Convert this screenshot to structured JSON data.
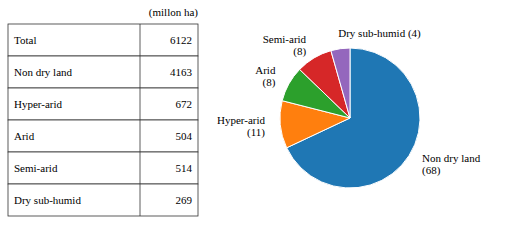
{
  "chart_data": [
    {
      "type": "table",
      "subtitle": "(millon ha)",
      "categories": [
        "Total",
        "Non dry land",
        "Hyper-arid",
        "Arid",
        "Semi-arid",
        "Dry sub-humid"
      ],
      "values": [
        6122,
        4163,
        672,
        504,
        514,
        269
      ]
    },
    {
      "type": "pie",
      "categories": [
        "Non dry land\n(68)",
        "Hyper-arid\n(11)",
        "Arid\n(8)",
        "Semi-arid\n(8)",
        "Dry sub-humid (4)"
      ],
      "values": [
        4163,
        672,
        504,
        514,
        269
      ]
    }
  ]
}
